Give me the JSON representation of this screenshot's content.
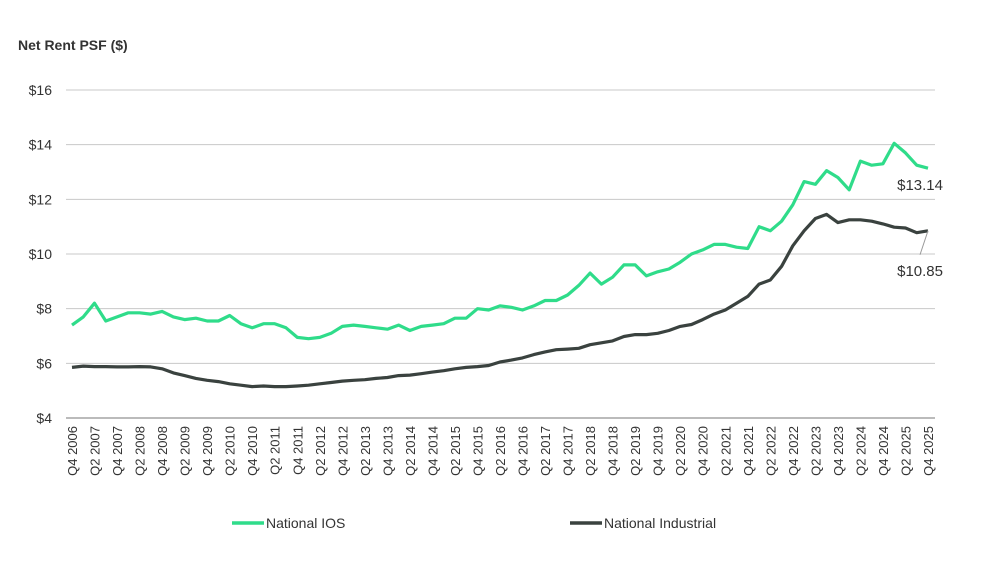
{
  "chart_data": {
    "type": "line",
    "ylabel": "Net Rent PSF ($)",
    "ylim": [
      4,
      16
    ],
    "yticks": [
      4,
      6,
      8,
      10,
      12,
      14,
      16
    ],
    "ytick_labels": [
      "$4",
      "$6",
      "$8",
      "$10",
      "$12",
      "$14",
      "$16"
    ],
    "grid": true,
    "legend_placement": "bottom",
    "x": [
      "Q4 2006",
      "Q1 2007",
      "Q2 2007",
      "Q3 2007",
      "Q4 2007",
      "Q1 2008",
      "Q2 2008",
      "Q3 2008",
      "Q4 2008",
      "Q1 2009",
      "Q2 2009",
      "Q3 2009",
      "Q4 2009",
      "Q1 2010",
      "Q2 2010",
      "Q3 2010",
      "Q4 2010",
      "Q1 2011",
      "Q2 2011",
      "Q3 2011",
      "Q4 2011",
      "Q1 2012",
      "Q2 2012",
      "Q3 2012",
      "Q4 2012",
      "Q1 2013",
      "Q2 2013",
      "Q3 2013",
      "Q4 2013",
      "Q1 2014",
      "Q2 2014",
      "Q3 2014",
      "Q4 2014",
      "Q1 2015",
      "Q2 2015",
      "Q3 2015",
      "Q4 2015",
      "Q1 2016",
      "Q2 2016",
      "Q3 2016",
      "Q4 2016",
      "Q1 2017",
      "Q2 2017",
      "Q3 2017",
      "Q4 2017",
      "Q1 2018",
      "Q2 2018",
      "Q3 2018",
      "Q4 2018",
      "Q1 2019",
      "Q2 2019",
      "Q3 2019",
      "Q4 2019",
      "Q1 2020",
      "Q2 2020",
      "Q3 2020",
      "Q4 2020",
      "Q1 2021",
      "Q2 2021",
      "Q3 2021",
      "Q4 2021",
      "Q1 2022",
      "Q2 2022",
      "Q3 2022",
      "Q4 2022",
      "Q1 2023",
      "Q2 2023",
      "Q3 2023",
      "Q4 2023",
      "Q1 2024",
      "Q2 2024",
      "Q3 2024",
      "Q4 2024",
      "Q1 2025",
      "Q2 2025",
      "Q3 2025",
      "Q4 2025"
    ],
    "xtick_labels": [
      "Q4 2006",
      "Q2 2007",
      "Q4 2007",
      "Q2 2008",
      "Q4 2008",
      "Q2 2009",
      "Q4 2009",
      "Q2 2010",
      "Q4 2010",
      "Q2 2011",
      "Q4 2011",
      "Q2 2012",
      "Q4 2012",
      "Q2 2013",
      "Q4 2013",
      "Q2 2014",
      "Q4 2014",
      "Q2 2015",
      "Q4 2015",
      "Q2 2016",
      "Q4 2016",
      "Q2 2017",
      "Q4 2017",
      "Q2 2018",
      "Q4 2018",
      "Q2 2019",
      "Q4 2019",
      "Q2 2020",
      "Q4 2020",
      "Q2 2021",
      "Q4 2021",
      "Q2 2022",
      "Q4 2022",
      "Q2 2023",
      "Q4 2023",
      "Q2 2024",
      "Q4 2024",
      "Q2 2025",
      "Q4 2025"
    ],
    "series": [
      {
        "name": "National IOS",
        "color": "#2fdc8a",
        "values": [
          7.4,
          7.7,
          8.2,
          7.55,
          7.7,
          7.85,
          7.85,
          7.8,
          7.9,
          7.7,
          7.6,
          7.65,
          7.55,
          7.55,
          7.75,
          7.45,
          7.3,
          7.45,
          7.45,
          7.3,
          6.95,
          6.9,
          6.95,
          7.1,
          7.35,
          7.4,
          7.35,
          7.3,
          7.25,
          7.4,
          7.2,
          7.35,
          7.4,
          7.45,
          7.65,
          7.65,
          8.0,
          7.95,
          8.1,
          8.05,
          7.95,
          8.1,
          8.3,
          8.3,
          8.5,
          8.85,
          9.3,
          8.9,
          9.15,
          9.6,
          9.6,
          9.2,
          9.35,
          9.45,
          9.7,
          10.0,
          10.15,
          10.35,
          10.35,
          10.25,
          10.2,
          11.0,
          10.85,
          11.2,
          11.8,
          12.65,
          12.55,
          13.05,
          12.8,
          12.35,
          13.4,
          13.25,
          13.3,
          14.05,
          13.7,
          13.25,
          13.14
        ],
        "end_label": "$13.14"
      },
      {
        "name": "National Industrial",
        "color": "#3a423f",
        "values": [
          5.85,
          5.9,
          5.88,
          5.88,
          5.87,
          5.87,
          5.88,
          5.87,
          5.8,
          5.65,
          5.55,
          5.45,
          5.38,
          5.33,
          5.25,
          5.2,
          5.15,
          5.17,
          5.15,
          5.15,
          5.17,
          5.2,
          5.25,
          5.3,
          5.35,
          5.38,
          5.4,
          5.45,
          5.48,
          5.55,
          5.57,
          5.62,
          5.68,
          5.73,
          5.8,
          5.85,
          5.88,
          5.92,
          6.05,
          6.12,
          6.2,
          6.32,
          6.42,
          6.5,
          6.52,
          6.55,
          6.68,
          6.75,
          6.82,
          6.98,
          7.05,
          7.05,
          7.1,
          7.2,
          7.35,
          7.42,
          7.6,
          7.8,
          7.95,
          8.2,
          8.45,
          8.9,
          9.05,
          9.55,
          10.3,
          10.85,
          11.3,
          11.45,
          11.15,
          11.25,
          11.25,
          11.2,
          11.1,
          10.98,
          10.95,
          10.78,
          10.85
        ],
        "end_label": "$10.85"
      }
    ]
  }
}
